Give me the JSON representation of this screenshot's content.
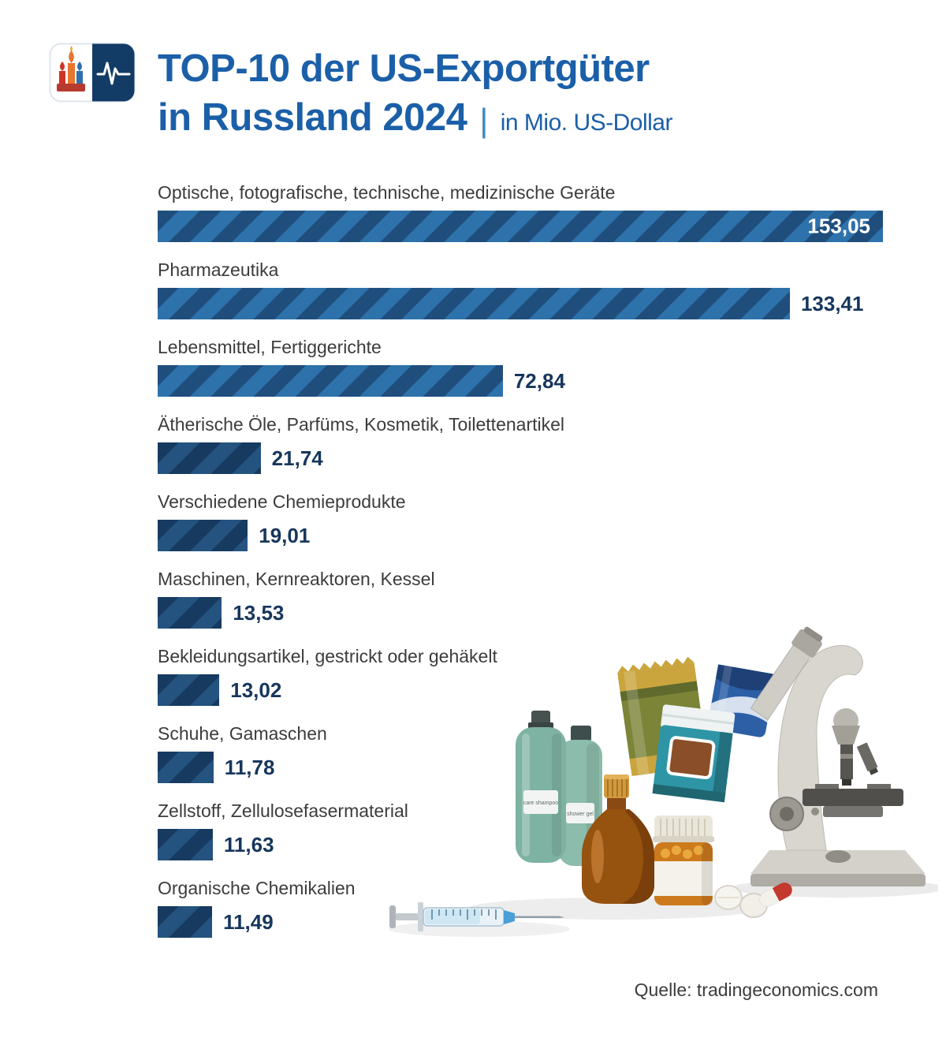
{
  "header": {
    "title_line1": "TOP-10 der US-Exportgüter",
    "title_line2": "in Russland 2024",
    "separator": "|",
    "subtitle": "in Mio. US-Dollar"
  },
  "source": "Quelle: tradingeconomics.com",
  "icons": {
    "logo_left": "cathedral-icon",
    "logo_right": "heartbeat-pulse-icon"
  },
  "illustration": {
    "care_shampoo_label": "care shampoo",
    "shower_gel_label": "shower gel"
  },
  "colors": {
    "title_blue": "#1b5fa8",
    "separator_blue": "#3c87c4",
    "subtitle_blue": "#1b5fa8",
    "label_gray": "#3c3c3c",
    "value_navy": "#16365c",
    "bar_stripe_light": "#2e72ab",
    "bar_stripe_dark": "#1f4e7d",
    "bar_small_stripe_light": "#24537f",
    "bar_small_stripe_dark": "#173a60",
    "source_gray": "#3c3c3c",
    "background": "#ffffff"
  },
  "chart_data": {
    "type": "bar",
    "orientation": "horizontal",
    "title": "TOP-10 der US-Exportgüter in Russland 2024",
    "unit": "Mio. US-Dollar",
    "grid": false,
    "legend": false,
    "categories": [
      "Optische, fotografische, technische, medizinische Geräte",
      "Pharmazeutika",
      "Lebensmittel, Fertiggerichte",
      "Ätherische Öle, Parfüms, Kosmetik, Toilettenartikel",
      "Verschiedene Chemieprodukte",
      "Maschinen, Kernreaktoren, Kessel",
      "Bekleidungsartikel, gestrickt oder gehäkelt",
      "Schuhe, Gamaschen",
      "Zellstoff, Zellulosefasermaterial",
      "Organische Chemikalien"
    ],
    "values": [
      153.05,
      133.41,
      72.84,
      21.74,
      19.01,
      13.53,
      13.02,
      11.78,
      11.63,
      11.49
    ],
    "value_labels": [
      "153,05",
      "133,41",
      "72,84",
      "21,74",
      "19,01",
      "13,53",
      "13,02",
      "11,78",
      "11,63",
      "11,49"
    ]
  }
}
